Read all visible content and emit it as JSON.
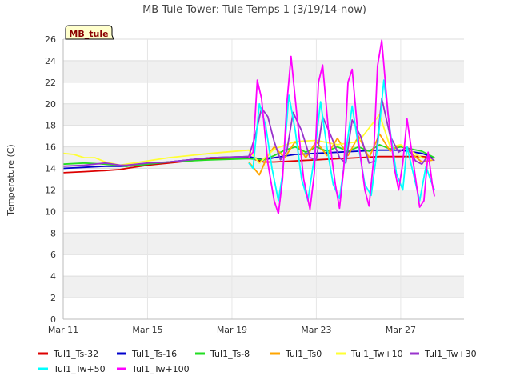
{
  "chart_data": {
    "type": "line",
    "title": "MB Tule Tower: Tule Temps 1 (3/19/14-now)",
    "ylabel": "Temperature (C)",
    "xlabel": "",
    "station_tag": "MB_tule",
    "ylim": [
      0,
      26
    ],
    "y_ticks": [
      0,
      2,
      4,
      6,
      8,
      10,
      12,
      14,
      16,
      18,
      20,
      22,
      24,
      26
    ],
    "xlim": [
      "2014-03-11",
      "2014-03-30"
    ],
    "x_ticks": [
      "Mar 11",
      "Mar 15",
      "Mar 19",
      "Mar 23",
      "Mar 27"
    ],
    "grid": true,
    "legend_position": "bottom",
    "series": [
      {
        "name": "Tul1_Ts-32",
        "color": "#dd0000",
        "points": [
          [
            0,
            13.6
          ],
          [
            1,
            13.7
          ],
          [
            2,
            13.8
          ],
          [
            2.7,
            13.9
          ],
          [
            3,
            14.0
          ],
          [
            4,
            14.3
          ],
          [
            5,
            14.5
          ],
          [
            6,
            14.7
          ],
          [
            7,
            14.9
          ],
          [
            8.8,
            15.0
          ],
          [
            9.5,
            14.6
          ],
          [
            10,
            14.6
          ],
          [
            11,
            14.7
          ],
          [
            12,
            14.8
          ],
          [
            13,
            14.9
          ],
          [
            14,
            15.0
          ],
          [
            15,
            15.1
          ],
          [
            16,
            15.1
          ],
          [
            17,
            15.1
          ],
          [
            17.6,
            15.0
          ]
        ]
      },
      {
        "name": "Tul1_Ts-16",
        "color": "#0000cc",
        "points": [
          [
            0,
            14.0
          ],
          [
            1,
            14.1
          ],
          [
            2,
            14.2
          ],
          [
            3,
            14.2
          ],
          [
            4,
            14.4
          ],
          [
            5,
            14.6
          ],
          [
            6,
            14.8
          ],
          [
            7,
            15.0
          ],
          [
            8.8,
            15.1
          ],
          [
            9.5,
            14.8
          ],
          [
            10,
            15.0
          ],
          [
            11,
            15.3
          ],
          [
            12,
            15.4
          ],
          [
            13,
            15.5
          ],
          [
            14,
            15.6
          ],
          [
            15,
            15.7
          ],
          [
            16,
            15.7
          ],
          [
            17,
            15.4
          ],
          [
            17.6,
            15.0
          ]
        ]
      },
      {
        "name": "Tul1_Ts-8",
        "color": "#22dd22",
        "points": [
          [
            0,
            14.4
          ],
          [
            1,
            14.5
          ],
          [
            2,
            14.4
          ],
          [
            3,
            14.2
          ],
          [
            4,
            14.4
          ],
          [
            5,
            14.6
          ],
          [
            6,
            14.7
          ],
          [
            7,
            14.8
          ],
          [
            8.8,
            14.9
          ],
          [
            9.5,
            14.8
          ],
          [
            10,
            15.2
          ],
          [
            10.5,
            15.7
          ],
          [
            11,
            16.0
          ],
          [
            11.5,
            15.5
          ],
          [
            12,
            16.0
          ],
          [
            12.5,
            15.6
          ],
          [
            13,
            16.0
          ],
          [
            13.5,
            15.6
          ],
          [
            14,
            16.0
          ],
          [
            14.5,
            15.6
          ],
          [
            15,
            16.2
          ],
          [
            15.5,
            15.8
          ],
          [
            16,
            16.0
          ],
          [
            17,
            15.6
          ],
          [
            17.6,
            15.0
          ]
        ]
      },
      {
        "name": "Tul1_Ts0",
        "color": "#ffa500",
        "points": [
          [
            8.8,
            14.6
          ],
          [
            9.3,
            13.4
          ],
          [
            9.7,
            15.2
          ],
          [
            10,
            16.0
          ],
          [
            10.5,
            15.0
          ],
          [
            11,
            16.5
          ],
          [
            11.5,
            15.0
          ],
          [
            12,
            16.5
          ],
          [
            12.5,
            15.2
          ],
          [
            13,
            16.8
          ],
          [
            13.5,
            15.2
          ],
          [
            14,
            17.0
          ],
          [
            14.5,
            15.0
          ],
          [
            15,
            17.2
          ],
          [
            15.5,
            15.6
          ],
          [
            16,
            16.2
          ],
          [
            17,
            14.6
          ],
          [
            17.6,
            14.8
          ]
        ]
      },
      {
        "name": "Tul1_Tw+10",
        "color": "#ffff33",
        "points": [
          [
            0,
            15.4
          ],
          [
            0.5,
            15.3
          ],
          [
            1,
            15.0
          ],
          [
            1.5,
            15.0
          ],
          [
            2,
            14.6
          ],
          [
            2.7,
            14.3
          ],
          [
            3,
            14.4
          ],
          [
            4,
            14.7
          ],
          [
            5,
            15.0
          ],
          [
            6,
            15.2
          ],
          [
            7,
            15.4
          ],
          [
            8.8,
            15.7
          ],
          [
            9.3,
            14.5
          ],
          [
            10,
            15.8
          ],
          [
            11,
            16.5
          ],
          [
            12,
            16.6
          ],
          [
            13,
            16.2
          ],
          [
            14,
            16.5
          ],
          [
            15,
            19.0
          ],
          [
            15.5,
            16.0
          ],
          [
            16,
            16.2
          ],
          [
            17,
            15.0
          ],
          [
            17.6,
            14.8
          ]
        ]
      },
      {
        "name": "Tul1_Tw+30",
        "color": "#9933cc",
        "points": [
          [
            0,
            14.2
          ],
          [
            1,
            14.3
          ],
          [
            2,
            14.5
          ],
          [
            2.7,
            14.3
          ],
          [
            3,
            14.3
          ],
          [
            4,
            14.5
          ],
          [
            5,
            14.6
          ],
          [
            6,
            14.8
          ],
          [
            7,
            15.0
          ],
          [
            8.8,
            15.1
          ],
          [
            9.1,
            17.0
          ],
          [
            9.4,
            19.6
          ],
          [
            9.7,
            18.8
          ],
          [
            10,
            16.5
          ],
          [
            10.3,
            14.8
          ],
          [
            10.6,
            15.6
          ],
          [
            10.9,
            19.2
          ],
          [
            11.3,
            17.5
          ],
          [
            11.7,
            15.0
          ],
          [
            12.0,
            14.8
          ],
          [
            12.3,
            18.8
          ],
          [
            12.7,
            17.0
          ],
          [
            13.1,
            15.0
          ],
          [
            13.4,
            14.5
          ],
          [
            13.7,
            18.5
          ],
          [
            14.1,
            17.0
          ],
          [
            14.5,
            14.5
          ],
          [
            14.8,
            14.7
          ],
          [
            15.1,
            20.5
          ],
          [
            15.5,
            17.0
          ],
          [
            15.9,
            15.5
          ],
          [
            16.3,
            16.0
          ],
          [
            16.7,
            14.7
          ],
          [
            17.0,
            14.4
          ],
          [
            17.3,
            15.2
          ],
          [
            17.6,
            14.7
          ]
        ]
      },
      {
        "name": "Tul1_Tw+50",
        "color": "#00ffff",
        "points": [
          [
            8.8,
            14.5
          ],
          [
            9.0,
            14.0
          ],
          [
            9.3,
            20.0
          ],
          [
            9.6,
            18.0
          ],
          [
            9.9,
            14.0
          ],
          [
            10.2,
            11.0
          ],
          [
            10.4,
            13.5
          ],
          [
            10.7,
            20.8
          ],
          [
            11.0,
            17.5
          ],
          [
            11.3,
            13.0
          ],
          [
            11.6,
            11.0
          ],
          [
            11.9,
            15.0
          ],
          [
            12.2,
            20.2
          ],
          [
            12.5,
            16.0
          ],
          [
            12.8,
            12.5
          ],
          [
            13.1,
            11.2
          ],
          [
            13.4,
            15.5
          ],
          [
            13.7,
            19.8
          ],
          [
            14.0,
            16.0
          ],
          [
            14.3,
            12.5
          ],
          [
            14.6,
            11.5
          ],
          [
            14.9,
            16.0
          ],
          [
            15.2,
            22.2
          ],
          [
            15.5,
            17.5
          ],
          [
            15.8,
            13.5
          ],
          [
            16.1,
            12.0
          ],
          [
            16.3,
            16.0
          ],
          [
            16.6,
            13.5
          ],
          [
            16.9,
            11.0
          ],
          [
            17.2,
            14.2
          ],
          [
            17.4,
            13.0
          ],
          [
            17.6,
            12.0
          ]
        ]
      },
      {
        "name": "Tul1_Tw+100",
        "color": "#ff00ff",
        "points": [
          [
            8.8,
            15.0
          ],
          [
            9.0,
            15.5
          ],
          [
            9.2,
            22.2
          ],
          [
            9.4,
            20.5
          ],
          [
            9.7,
            14.5
          ],
          [
            10.0,
            11.0
          ],
          [
            10.2,
            9.8
          ],
          [
            10.4,
            13.0
          ],
          [
            10.6,
            20.0
          ],
          [
            10.8,
            24.4
          ],
          [
            11.1,
            18.5
          ],
          [
            11.4,
            13.0
          ],
          [
            11.7,
            10.2
          ],
          [
            11.9,
            13.5
          ],
          [
            12.1,
            22.0
          ],
          [
            12.3,
            23.6
          ],
          [
            12.6,
            17.0
          ],
          [
            12.9,
            12.5
          ],
          [
            13.1,
            10.3
          ],
          [
            13.3,
            14.0
          ],
          [
            13.5,
            22.0
          ],
          [
            13.7,
            23.2
          ],
          [
            14.0,
            16.5
          ],
          [
            14.3,
            12.0
          ],
          [
            14.5,
            10.5
          ],
          [
            14.7,
            14.5
          ],
          [
            14.9,
            23.5
          ],
          [
            15.1,
            25.9
          ],
          [
            15.4,
            19.0
          ],
          [
            15.7,
            14.0
          ],
          [
            15.9,
            12.0
          ],
          [
            16.1,
            14.5
          ],
          [
            16.3,
            18.6
          ],
          [
            16.6,
            14.5
          ],
          [
            16.9,
            10.4
          ],
          [
            17.1,
            11.0
          ],
          [
            17.3,
            15.5
          ],
          [
            17.5,
            12.5
          ],
          [
            17.6,
            11.4
          ]
        ]
      }
    ]
  }
}
